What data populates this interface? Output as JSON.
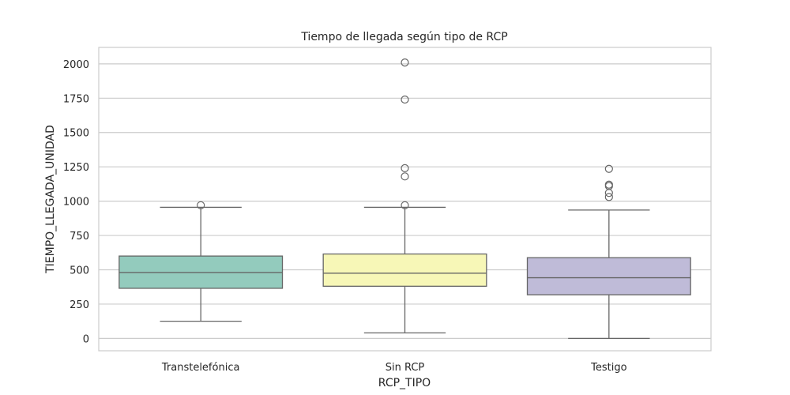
{
  "chart_data": {
    "type": "box",
    "title": "Tiempo de llegada según tipo de RCP",
    "xlabel": "RCP_TIPO",
    "ylabel": "TIEMPO_LLEGADA_UNIDAD",
    "ylim": [
      -90,
      2120
    ],
    "yticks": [
      0,
      250,
      500,
      750,
      1000,
      1250,
      1500,
      1750,
      2000
    ],
    "grid": true,
    "categories": [
      "Transtelefónica",
      "Sin RCP",
      "Testigo"
    ],
    "boxes": [
      {
        "category": "Transtelefónica",
        "color": "#93cbbd",
        "whisker_low": 125,
        "q1": 365,
        "median": 480,
        "q3": 600,
        "whisker_high": 955,
        "outliers": [
          970
        ]
      },
      {
        "category": "Sin RCP",
        "color": "#f7f7b7",
        "whisker_low": 40,
        "q1": 380,
        "median": 475,
        "q3": 615,
        "whisker_high": 955,
        "outliers": [
          970,
          1180,
          1240,
          1740,
          2010
        ]
      },
      {
        "category": "Testigo",
        "color": "#bfbbd8",
        "whisker_low": 0,
        "q1": 318,
        "median": 442,
        "q3": 588,
        "whisker_high": 935,
        "outliers": [
          1030,
          1060,
          1110,
          1120,
          1235
        ]
      }
    ]
  }
}
